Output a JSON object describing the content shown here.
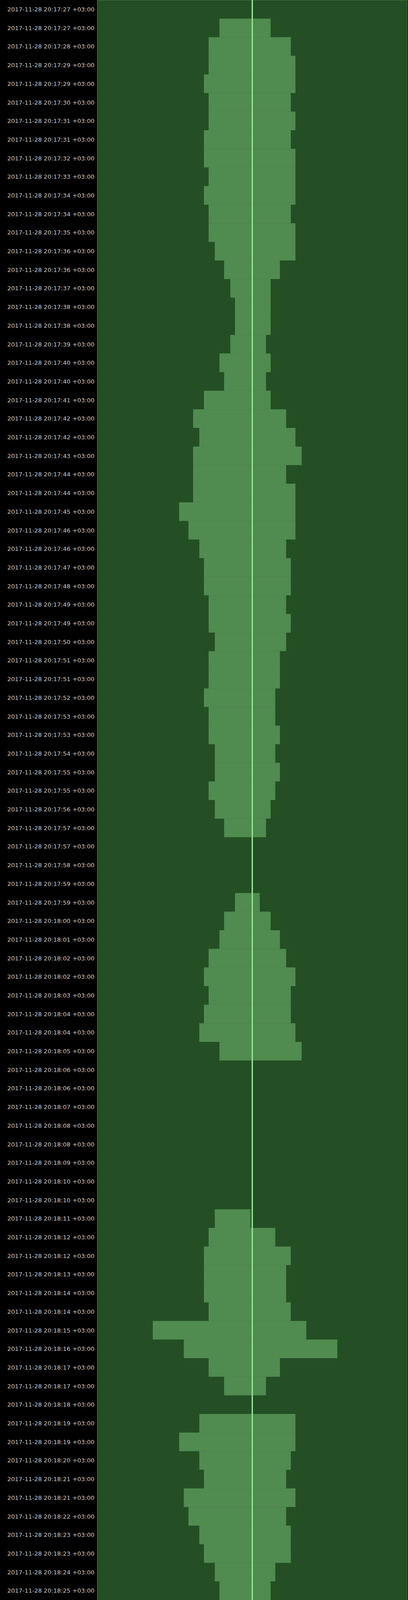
{
  "chart_data": {
    "type": "waterfall",
    "categories": [
      "2017-11-28 20:17:27 +03:00",
      "2017-11-28 20:17:27 +03:00",
      "2017-11-28 20:17:28 +03:00",
      "2017-11-28 20:17:29 +03:00",
      "2017-11-28 20:17:29 +03:00",
      "2017-11-28 20:17:30 +03:00",
      "2017-11-28 20:17:31 +03:00",
      "2017-11-28 20:17:31 +03:00",
      "2017-11-28 20:17:32 +03:00",
      "2017-11-28 20:17:33 +03:00",
      "2017-11-28 20:17:34 +03:00",
      "2017-11-28 20:17:34 +03:00",
      "2017-11-28 20:17:35 +03:00",
      "2017-11-28 20:17:36 +03:00",
      "2017-11-28 20:17:36 +03:00",
      "2017-11-28 20:17:37 +03:00",
      "2017-11-28 20:17:38 +03:00",
      "2017-11-28 20:17:38 +03:00",
      "2017-11-28 20:17:39 +03:00",
      "2017-11-28 20:17:40 +03:00",
      "2017-11-28 20:17:40 +03:00",
      "2017-11-28 20:17:41 +03:00",
      "2017-11-28 20:17:42 +03:00",
      "2017-11-28 20:17:42 +03:00",
      "2017-11-28 20:17:43 +03:00",
      "2017-11-28 20:17:44 +03:00",
      "2017-11-28 20:17:44 +03:00",
      "2017-11-28 20:17:45 +03:00",
      "2017-11-28 20:17:46 +03:00",
      "2017-11-28 20:17:46 +03:00",
      "2017-11-28 20:17:47 +03:00",
      "2017-11-28 20:17:48 +03:00",
      "2017-11-28 20:17:49 +03:00",
      "2017-11-28 20:17:49 +03:00",
      "2017-11-28 20:17:50 +03:00",
      "2017-11-28 20:17:51 +03:00",
      "2017-11-28 20:17:51 +03:00",
      "2017-11-28 20:17:52 +03:00",
      "2017-11-28 20:17:53 +03:00",
      "2017-11-28 20:17:53 +03:00",
      "2017-11-28 20:17:54 +03:00",
      "2017-11-28 20:17:55 +03:00",
      "2017-11-28 20:17:55 +03:00",
      "2017-11-28 20:17:56 +03:00",
      "2017-11-28 20:17:57 +03:00",
      "2017-11-28 20:17:57 +03:00",
      "2017-11-28 20:17:58 +03:00",
      "2017-11-28 20:17:59 +03:00",
      "2017-11-28 20:17:59 +03:00",
      "2017-11-28 20:18:00 +03:00",
      "2017-11-28 20:18:01 +03:00",
      "2017-11-28 20:18:02 +03:00",
      "2017-11-28 20:18:02 +03:00",
      "2017-11-28 20:18:03 +03:00",
      "2017-11-28 20:18:04 +03:00",
      "2017-11-28 20:18:04 +03:00",
      "2017-11-28 20:18:05 +03:00",
      "2017-11-28 20:18:06 +03:00",
      "2017-11-28 20:18:06 +03:00",
      "2017-11-28 20:18:07 +03:00",
      "2017-11-28 20:18:08 +03:00",
      "2017-11-28 20:18:08 +03:00",
      "2017-11-28 20:18:09 +03:00",
      "2017-11-28 20:18:10 +03:00",
      "2017-11-28 20:18:10 +03:00",
      "2017-11-28 20:18:11 +03:00",
      "2017-11-28 20:18:12 +03:00",
      "2017-11-28 20:18:12 +03:00",
      "2017-11-28 20:18:13 +03:00",
      "2017-11-28 20:18:14 +03:00",
      "2017-11-28 20:18:14 +03:00",
      "2017-11-28 20:18:15 +03:00",
      "2017-11-28 20:18:16 +03:00",
      "2017-11-28 20:18:17 +03:00",
      "2017-11-28 20:18:17 +03:00",
      "2017-11-28 20:18:18 +03:00",
      "2017-11-28 20:18:19 +03:00",
      "2017-11-28 20:18:19 +03:00",
      "2017-11-28 20:18:20 +03:00",
      "2017-11-28 20:18:21 +03:00",
      "2017-11-28 20:18:21 +03:00",
      "2017-11-28 20:18:22 +03:00",
      "2017-11-28 20:18:23 +03:00",
      "2017-11-28 20:18:23 +03:00",
      "2017-11-28 20:18:24 +03:00",
      "2017-11-28 20:18:25 +03:00"
    ],
    "signal_from": [
      null,
      -0.21,
      -0.28,
      -0.28,
      -0.31,
      -0.28,
      -0.28,
      -0.31,
      -0.31,
      -0.28,
      -0.31,
      -0.28,
      -0.28,
      -0.24,
      -0.18,
      -0.14,
      -0.11,
      -0.11,
      -0.14,
      -0.21,
      -0.18,
      -0.31,
      -0.38,
      -0.34,
      -0.38,
      -0.38,
      -0.38,
      -0.47,
      -0.41,
      -0.34,
      -0.31,
      -0.31,
      -0.28,
      -0.28,
      -0.24,
      -0.28,
      -0.28,
      -0.31,
      -0.28,
      -0.28,
      -0.24,
      -0.24,
      -0.28,
      -0.24,
      -0.18,
      null,
      null,
      null,
      -0.11,
      -0.18,
      -0.21,
      -0.28,
      -0.31,
      -0.28,
      -0.31,
      -0.34,
      -0.21,
      null,
      null,
      null,
      null,
      null,
      null,
      null,
      null,
      -0.24,
      -0.28,
      -0.31,
      -0.31,
      -0.31,
      -0.28,
      -0.64,
      -0.44,
      -0.28,
      -0.18,
      null,
      -0.34,
      -0.47,
      -0.34,
      -0.31,
      -0.44,
      -0.41,
      -0.34,
      -0.31,
      -0.24,
      -0.21
    ],
    "signal_to": [
      null,
      0.12,
      0.25,
      0.28,
      0.28,
      0.25,
      0.28,
      0.25,
      0.28,
      0.28,
      0.28,
      0.25,
      0.28,
      0.28,
      0.18,
      0.12,
      0.12,
      0.12,
      0.09,
      0.12,
      0.09,
      0.12,
      0.22,
      0.28,
      0.32,
      0.22,
      0.28,
      0.28,
      0.28,
      0.22,
      0.25,
      0.25,
      0.22,
      0.25,
      0.22,
      0.18,
      0.18,
      0.15,
      0.15,
      0.18,
      0.15,
      0.18,
      0.15,
      0.12,
      0.09,
      null,
      null,
      null,
      0.05,
      0.12,
      0.18,
      0.22,
      0.28,
      0.25,
      0.25,
      0.28,
      0.32,
      null,
      null,
      null,
      null,
      null,
      null,
      null,
      null,
      -0.01,
      0.15,
      0.25,
      0.22,
      0.22,
      0.25,
      0.35,
      0.55,
      0.18,
      0.09,
      null,
      0.28,
      0.28,
      0.25,
      0.22,
      0.28,
      0.22,
      0.25,
      0.25,
      0.15,
      0.12
    ],
    "carrier": 0,
    "xlim": [
      -1,
      1
    ],
    "tick_labels": "y",
    "color": "#8fe08f"
  }
}
